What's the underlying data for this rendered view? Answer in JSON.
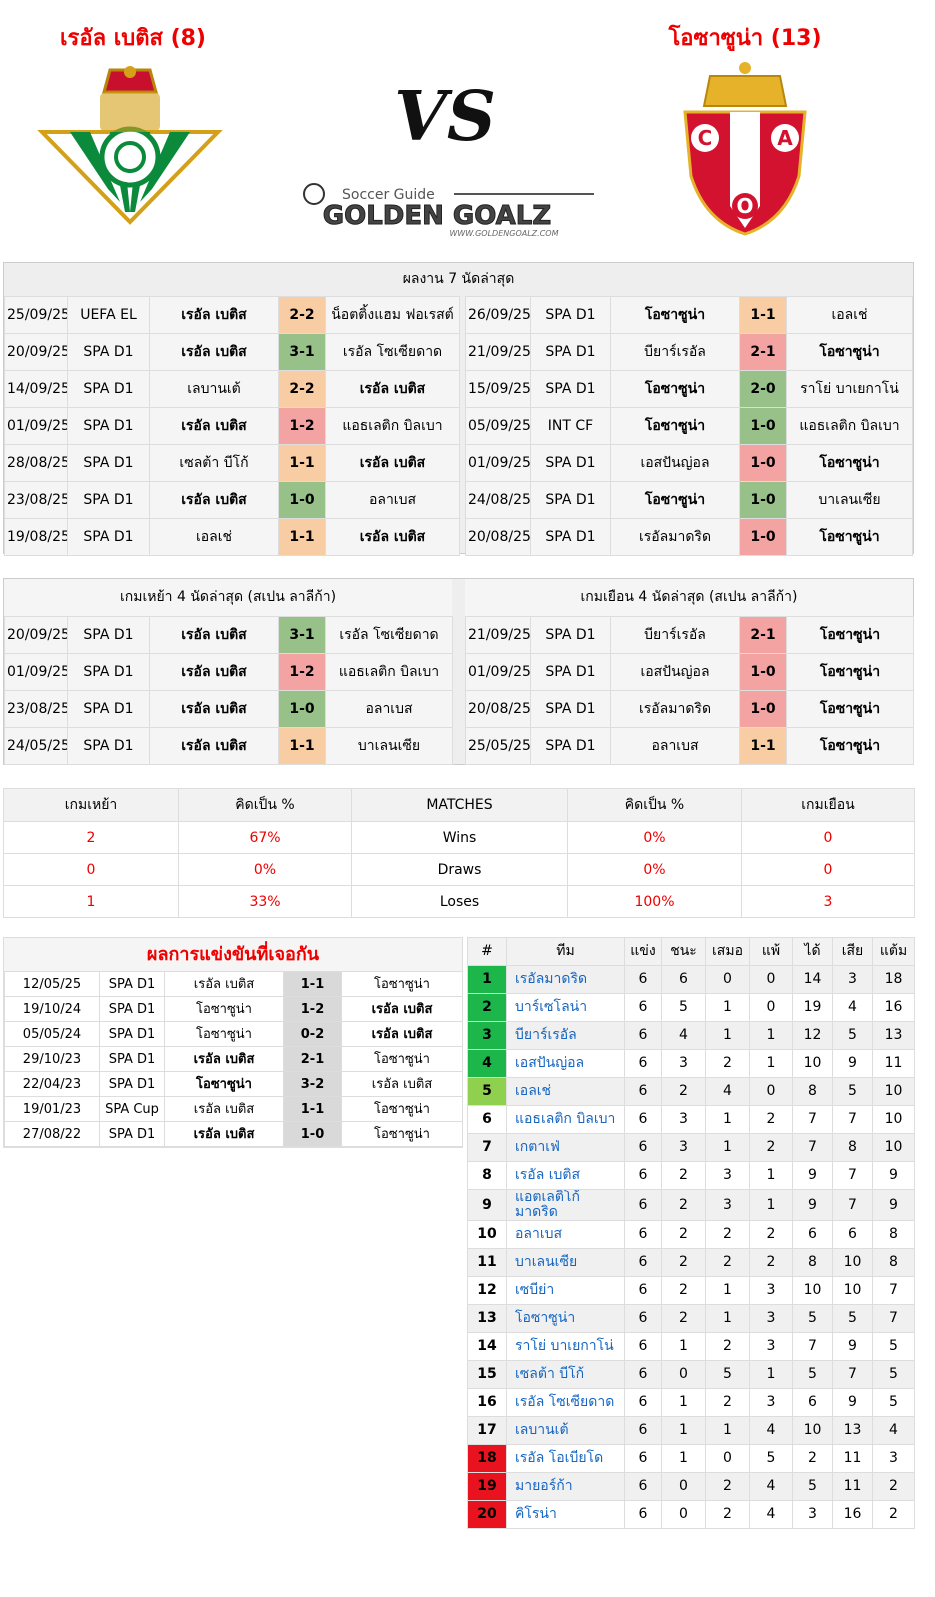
{
  "header": {
    "home_team": "เรอัล เบติส (8)",
    "away_team": "โอซาซูน่า (13)",
    "vs": "VS",
    "logo": {
      "tagline": "Soccer Guide",
      "name": "GOLDEN GOALZ",
      "url": "WWW.GOLDENGOALZ.COM"
    },
    "away_crest_letters": [
      "C",
      "A",
      "O"
    ]
  },
  "recent_form": {
    "title": "ผลงาน 7 นัดล่าสุด",
    "home": [
      {
        "date": "25/09/25",
        "competition": "UEFA EL",
        "home": "เรอัล เบติส",
        "score": "2-2",
        "away": "น็อตติ้งแฮม ฟอเรสต์",
        "bold": "home",
        "color": "#f9cda3"
      },
      {
        "date": "20/09/25",
        "competition": "SPA D1",
        "home": "เรอัล เบติส",
        "score": "3-1",
        "away": "เรอัล โซเซียดาด",
        "bold": "home",
        "color": "#98c18a"
      },
      {
        "date": "14/09/25",
        "competition": "SPA D1",
        "home": "เลบานเต้",
        "score": "2-2",
        "away": "เรอัล เบติส",
        "bold": "away",
        "color": "#f9cda3"
      },
      {
        "date": "01/09/25",
        "competition": "SPA D1",
        "home": "เรอัล เบติส",
        "score": "1-2",
        "away": "แอธเลติก บิลเบา",
        "bold": "home",
        "color": "#f4a3a3"
      },
      {
        "date": "28/08/25",
        "competition": "SPA D1",
        "home": "เซลต้า บีโก้",
        "score": "1-1",
        "away": "เรอัล เบติส",
        "bold": "away",
        "color": "#f9cda3"
      },
      {
        "date": "23/08/25",
        "competition": "SPA D1",
        "home": "เรอัล เบติส",
        "score": "1-0",
        "away": "อลาเบส",
        "bold": "home",
        "color": "#98c18a"
      },
      {
        "date": "19/08/25",
        "competition": "SPA D1",
        "home": "เอลเช่",
        "score": "1-1",
        "away": "เรอัล เบติส",
        "bold": "away",
        "color": "#f9cda3"
      }
    ],
    "away": [
      {
        "date": "26/09/25",
        "competition": "SPA D1",
        "home": "โอซาซูน่า",
        "score": "1-1",
        "away": "เอลเช่",
        "bold": "home",
        "color": "#f9cda3"
      },
      {
        "date": "21/09/25",
        "competition": "SPA D1",
        "home": "บียาร์เรอัล",
        "score": "2-1",
        "away": "โอซาซูน่า",
        "bold": "away",
        "color": "#f4a3a3"
      },
      {
        "date": "15/09/25",
        "competition": "SPA D1",
        "home": "โอซาซูน่า",
        "score": "2-0",
        "away": "ราโย่ บาเยกาโน่",
        "bold": "home",
        "color": "#98c18a"
      },
      {
        "date": "05/09/25",
        "competition": "INT CF",
        "home": "โอซาซูน่า",
        "score": "1-0",
        "away": "แอธเลติก บิลเบา",
        "bold": "home",
        "color": "#98c18a"
      },
      {
        "date": "01/09/25",
        "competition": "SPA D1",
        "home": "เอสปันญ่อล",
        "score": "1-0",
        "away": "โอซาซูน่า",
        "bold": "away",
        "color": "#f4a3a3"
      },
      {
        "date": "24/08/25",
        "competition": "SPA D1",
        "home": "โอซาซูน่า",
        "score": "1-0",
        "away": "บาเลนเซีย",
        "bold": "home",
        "color": "#98c18a"
      },
      {
        "date": "20/08/25",
        "competition": "SPA D1",
        "home": "เรอัลมาดริด",
        "score": "1-0",
        "away": "โอซาซูน่า",
        "bold": "away",
        "color": "#f4a3a3"
      }
    ]
  },
  "home_away_form": {
    "home_title": "เกมเหย้า 4 นัดล่าสุด (สเปน ลาลีก้า)",
    "away_title": "เกมเยือน 4 นัดล่าสุด (สเปน ลาลีก้า)",
    "home": [
      {
        "date": "20/09/25",
        "competition": "SPA D1",
        "home": "เรอัล เบติส",
        "score": "3-1",
        "away": "เรอัล โซเซียดาด",
        "bold": "home",
        "color": "#98c18a"
      },
      {
        "date": "01/09/25",
        "competition": "SPA D1",
        "home": "เรอัล เบติส",
        "score": "1-2",
        "away": "แอธเลติก บิลเบา",
        "bold": "home",
        "color": "#f4a3a3"
      },
      {
        "date": "23/08/25",
        "competition": "SPA D1",
        "home": "เรอัล เบติส",
        "score": "1-0",
        "away": "อลาเบส",
        "bold": "home",
        "color": "#98c18a"
      },
      {
        "date": "24/05/25",
        "competition": "SPA D1",
        "home": "เรอัล เบติส",
        "score": "1-1",
        "away": "บาเลนเซีย",
        "bold": "home",
        "color": "#f9cda3"
      }
    ],
    "away": [
      {
        "date": "21/09/25",
        "competition": "SPA D1",
        "home": "บียาร์เรอัล",
        "score": "2-1",
        "away": "โอซาซูน่า",
        "bold": "away",
        "color": "#f4a3a3"
      },
      {
        "date": "01/09/25",
        "competition": "SPA D1",
        "home": "เอสปันญ่อล",
        "score": "1-0",
        "away": "โอซาซูน่า",
        "bold": "away",
        "color": "#f4a3a3"
      },
      {
        "date": "20/08/25",
        "competition": "SPA D1",
        "home": "เรอัลมาดริด",
        "score": "1-0",
        "away": "โอซาซูน่า",
        "bold": "away",
        "color": "#f4a3a3"
      },
      {
        "date": "25/05/25",
        "competition": "SPA D1",
        "home": "อลาเบส",
        "score": "1-1",
        "away": "โอซาซูน่า",
        "bold": "away",
        "color": "#f9cda3"
      }
    ]
  },
  "summary": {
    "headers": [
      "เกมเหย้า",
      "คิดเป็น %",
      "MATCHES",
      "คิดเป็น %",
      "เกมเยือน"
    ],
    "rows": [
      [
        "2",
        "67%",
        "Wins",
        "0%",
        "0"
      ],
      [
        "0",
        "0%",
        "Draws",
        "0%",
        "0"
      ],
      [
        "1",
        "33%",
        "Loses",
        "100%",
        "3"
      ]
    ]
  },
  "head_to_head": {
    "title": "ผลการแข่งขันที่เจอกัน",
    "rows": [
      {
        "date": "12/05/25",
        "competition": "SPA D1",
        "home": "เรอัล เบติส",
        "score": "1-1",
        "away": "โอซาซูน่า",
        "bold": null
      },
      {
        "date": "19/10/24",
        "competition": "SPA D1",
        "home": "โอซาซูน่า",
        "score": "1-2",
        "away": "เรอัล เบติส",
        "bold": "away"
      },
      {
        "date": "05/05/24",
        "competition": "SPA D1",
        "home": "โอซาซูน่า",
        "score": "0-2",
        "away": "เรอัล เบติส",
        "bold": "away"
      },
      {
        "date": "29/10/23",
        "competition": "SPA D1",
        "home": "เรอัล เบติส",
        "score": "2-1",
        "away": "โอซาซูน่า",
        "bold": "home"
      },
      {
        "date": "22/04/23",
        "competition": "SPA D1",
        "home": "โอซาซูน่า",
        "score": "3-2",
        "away": "เรอัล เบติส",
        "bold": "home"
      },
      {
        "date": "19/01/23",
        "competition": "SPA Cup",
        "home": "เรอัล เบติส",
        "score": "1-1",
        "away": "โอซาซูน่า",
        "bold": null
      },
      {
        "date": "27/08/22",
        "competition": "SPA D1",
        "home": "เรอัล เบติส",
        "score": "1-0",
        "away": "โอซาซูน่า",
        "bold": "home"
      }
    ]
  },
  "standings": {
    "headers": [
      "#",
      "ทีม",
      "แข่ง",
      "ชนะ",
      "เสมอ",
      "แพ้",
      "ได้",
      "เสีย",
      "แต้ม"
    ],
    "rows": [
      [
        "1",
        "เรอัลมาดริด",
        "6",
        "6",
        "0",
        "0",
        "14",
        "3",
        "18"
      ],
      [
        "2",
        "บาร์เซโลน่า",
        "6",
        "5",
        "1",
        "0",
        "19",
        "4",
        "16"
      ],
      [
        "3",
        "บียาร์เรอัล",
        "6",
        "4",
        "1",
        "1",
        "12",
        "5",
        "13"
      ],
      [
        "4",
        "เอสปันญ่อล",
        "6",
        "3",
        "2",
        "1",
        "10",
        "9",
        "11"
      ],
      [
        "5",
        "เอลเช่",
        "6",
        "2",
        "4",
        "0",
        "8",
        "5",
        "10"
      ],
      [
        "6",
        "แอธเลติก บิลเบา",
        "6",
        "3",
        "1",
        "2",
        "7",
        "7",
        "10"
      ],
      [
        "7",
        "เกตาเฟ่",
        "6",
        "3",
        "1",
        "2",
        "7",
        "8",
        "10"
      ],
      [
        "8",
        "เรอัล เบติส",
        "6",
        "2",
        "3",
        "1",
        "9",
        "7",
        "9"
      ],
      [
        "9",
        "แอตเลติโก้ มาดริด",
        "6",
        "2",
        "3",
        "1",
        "9",
        "7",
        "9"
      ],
      [
        "10",
        "อลาเบส",
        "6",
        "2",
        "2",
        "2",
        "6",
        "6",
        "8"
      ],
      [
        "11",
        "บาเลนเซีย",
        "6",
        "2",
        "2",
        "2",
        "8",
        "10",
        "8"
      ],
      [
        "12",
        "เซบีย่า",
        "6",
        "2",
        "1",
        "3",
        "10",
        "10",
        "7"
      ],
      [
        "13",
        "โอซาซูน่า",
        "6",
        "2",
        "1",
        "3",
        "5",
        "5",
        "7"
      ],
      [
        "14",
        "ราโย่ บาเยกาโน่",
        "6",
        "1",
        "2",
        "3",
        "7",
        "9",
        "5"
      ],
      [
        "15",
        "เซลต้า บีโก้",
        "6",
        "0",
        "5",
        "1",
        "5",
        "7",
        "5"
      ],
      [
        "16",
        "เรอัล โซเซียดาด",
        "6",
        "1",
        "2",
        "3",
        "6",
        "9",
        "5"
      ],
      [
        "17",
        "เลบานเต้",
        "6",
        "1",
        "1",
        "4",
        "10",
        "13",
        "4"
      ],
      [
        "18",
        "เรอัล โอเบียโด",
        "6",
        "1",
        "0",
        "5",
        "2",
        "11",
        "3"
      ],
      [
        "19",
        "มายอร์ก้า",
        "6",
        "0",
        "2",
        "4",
        "5",
        "11",
        "2"
      ],
      [
        "20",
        "คิโรน่า",
        "6",
        "0",
        "2",
        "4",
        "3",
        "16",
        "2"
      ]
    ],
    "rank_colors": [
      "#1db64a",
      "#1db64a",
      "#1db64a",
      "#1db64a",
      "#8fd14f",
      null,
      null,
      null,
      null,
      null,
      null,
      null,
      null,
      null,
      null,
      null,
      null,
      "#e8131f",
      "#e8131f",
      "#e8131f"
    ]
  }
}
